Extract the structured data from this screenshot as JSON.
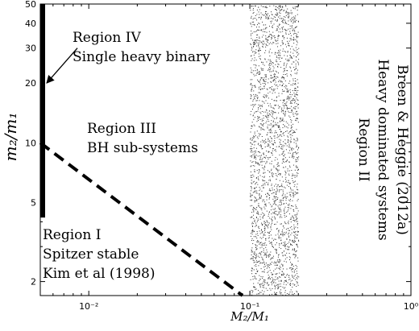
{
  "chart_data": {
    "type": "line",
    "xlabel": "M₂/M₁",
    "ylabel": "m₂/m₁",
    "xscale": "log",
    "yscale": "log",
    "xlim": [
      0.005,
      1
    ],
    "ylim": [
      1.7,
      50
    ],
    "x_ticks": [
      {
        "value": 0.01,
        "label": "10⁻²"
      },
      {
        "value": 0.1,
        "label": "10⁻¹"
      },
      {
        "value": 1,
        "label": "10⁰"
      }
    ],
    "y_ticks": [
      {
        "value": 2,
        "label": "2"
      },
      {
        "value": 5,
        "label": "5"
      },
      {
        "value": 10,
        "label": "10"
      },
      {
        "value": 20,
        "label": "20"
      },
      {
        "value": 30,
        "label": "30"
      },
      {
        "value": 40,
        "label": "40"
      },
      {
        "value": 50,
        "label": "50"
      }
    ],
    "series": [
      {
        "style": "dashed",
        "x": [
          0.005,
          0.09
        ],
        "y": [
          10,
          1.7
        ]
      },
      {
        "style": "thick-vertical",
        "x": [
          0.005,
          0.005
        ],
        "y": [
          4.2,
          50
        ]
      }
    ],
    "shaded_band": {
      "x_range": [
        0.1,
        0.2
      ],
      "pattern": "stippled"
    },
    "regions": [
      {
        "id": "region-iv",
        "lines": [
          "Region IV",
          "Single heavy binary"
        ]
      },
      {
        "id": "region-iii",
        "lines": [
          "Region III",
          "BH sub-systems"
        ]
      },
      {
        "id": "region-i",
        "lines": [
          "Region I",
          "Spitzer stable",
          "Kim et al (1998)"
        ]
      },
      {
        "id": "region-ii",
        "lines": [
          "Region II",
          "Heavy dominated systems",
          "Breen & Heggie (2012a)"
        ]
      }
    ],
    "arrow": {
      "from": [
        0.0085,
        30
      ],
      "to": [
        0.005,
        20
      ]
    },
    "grid": false
  }
}
